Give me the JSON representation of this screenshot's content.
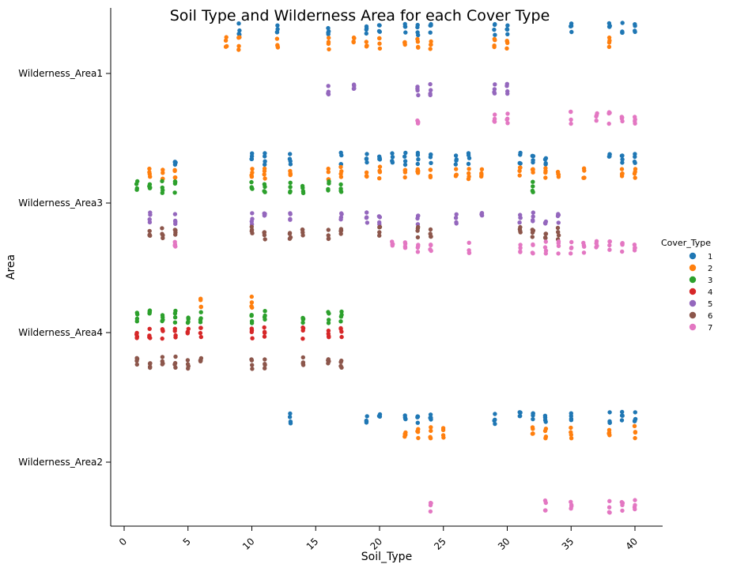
{
  "chart_data": {
    "type": "scatter",
    "subtype": "strip",
    "title": "Soil Type and Wilderness Area for each Cover Type",
    "xlabel": "Soil_Type",
    "ylabel": "Area",
    "xlim": [
      -1,
      42
    ],
    "x_ticks": [
      0,
      5,
      10,
      15,
      20,
      25,
      30,
      35,
      40
    ],
    "categories": [
      "Wilderness_Area1",
      "Wilderness_Area3",
      "Wilderness_Area4",
      "Wilderness_Area2"
    ],
    "grid": false,
    "legend": {
      "title": "Cover_Type",
      "placement": "right"
    },
    "series": [
      {
        "name": "1",
        "color": "#1f77b4",
        "points": [
          [
            "Wilderness_Area1",
            [
              9,
              12,
              16,
              19,
              20,
              22,
              23,
              24,
              29,
              30,
              35,
              38,
              39,
              40
            ]
          ],
          [
            "Wilderness_Area3",
            [
              4,
              10,
              11,
              13,
              17,
              19,
              20,
              21,
              22,
              23,
              24,
              26,
              27,
              31,
              32,
              33,
              38,
              39,
              40
            ]
          ],
          [
            "Wilderness_Area2",
            [
              13,
              19,
              20,
              22,
              23,
              24,
              29,
              31,
              32,
              33,
              35,
              38,
              39,
              40
            ]
          ]
        ]
      },
      {
        "name": "2",
        "color": "#ff7f0e",
        "points": [
          [
            "Wilderness_Area1",
            [
              8,
              9,
              12,
              16,
              18,
              19,
              20,
              22,
              23,
              24,
              29,
              30,
              38
            ]
          ],
          [
            "Wilderness_Area3",
            [
              2,
              3,
              4,
              10,
              11,
              13,
              16,
              17,
              19,
              20,
              22,
              23,
              24,
              26,
              27,
              28,
              31,
              32,
              33,
              34,
              36,
              39,
              40
            ]
          ],
          [
            "Wilderness_Area4",
            [
              6,
              10
            ]
          ],
          [
            "Wilderness_Area2",
            [
              22,
              23,
              24,
              25,
              32,
              33,
              35,
              38,
              40
            ]
          ]
        ]
      },
      {
        "name": "3",
        "color": "#2ca02c",
        "points": [
          [
            "Wilderness_Area3",
            [
              1,
              2,
              3,
              4,
              10,
              11,
              13,
              14,
              16,
              17,
              32
            ]
          ],
          [
            "Wilderness_Area4",
            [
              1,
              2,
              3,
              4,
              5,
              6,
              10,
              11,
              14,
              16,
              17
            ]
          ]
        ]
      },
      {
        "name": "4",
        "color": "#d62728",
        "points": [
          [
            "Wilderness_Area4",
            [
              1,
              2,
              3,
              4,
              5,
              6,
              10,
              11,
              14,
              16,
              17
            ]
          ]
        ]
      },
      {
        "name": "5",
        "color": "#9467bd",
        "points": [
          [
            "Wilderness_Area1",
            [
              16,
              18,
              23,
              24,
              29,
              30
            ]
          ],
          [
            "Wilderness_Area3",
            [
              2,
              4,
              10,
              11,
              13,
              17,
              19,
              20,
              23,
              26,
              28,
              31,
              32,
              33,
              34
            ]
          ]
        ]
      },
      {
        "name": "6",
        "color": "#8c564b",
        "points": [
          [
            "Wilderness_Area3",
            [
              2,
              3,
              4,
              10,
              11,
              13,
              14,
              16,
              17,
              20,
              23,
              24,
              31,
              32,
              33,
              34
            ]
          ],
          [
            "Wilderness_Area4",
            [
              1,
              2,
              3,
              4,
              5,
              6,
              10,
              11,
              14,
              16,
              17
            ]
          ]
        ]
      },
      {
        "name": "7",
        "color": "#e377c2",
        "points": [
          [
            "Wilderness_Area1",
            [
              23,
              29,
              30,
              35,
              37,
              38,
              39,
              40
            ]
          ],
          [
            "Wilderness_Area3",
            [
              4,
              21,
              22,
              23,
              24,
              27,
              31,
              32,
              33,
              34,
              35,
              36,
              37,
              38,
              39,
              40
            ]
          ],
          [
            "Wilderness_Area2",
            [
              24,
              33,
              35,
              38,
              39,
              40
            ]
          ]
        ]
      }
    ]
  }
}
